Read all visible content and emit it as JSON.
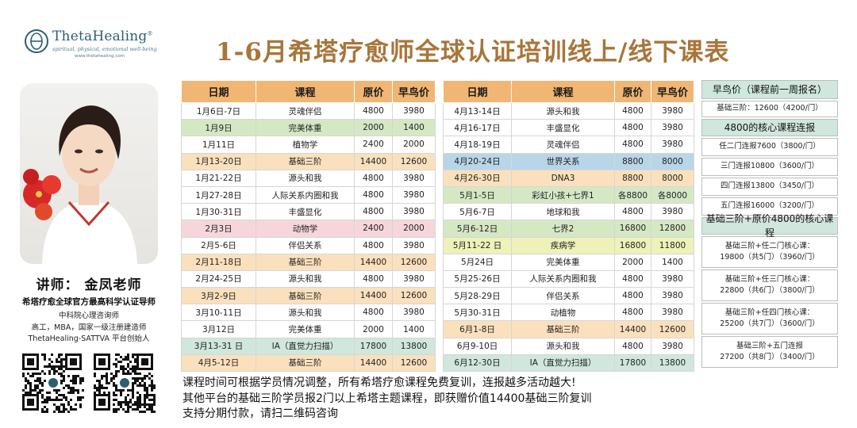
{
  "logo": {
    "name": "ThetaHealing",
    "registered": "®",
    "tagline": "spiritual, physical, emotional well-being",
    "url": "www.thetahealing.com"
  },
  "title": "1-6月希塔疗愈师全球认证培训线上/线下课表",
  "teacher": {
    "name": "讲师：  金凤老师",
    "role": "希塔疗愈全球官方最高科学认证导师",
    "lines": [
      "中科院心理咨询师",
      "高工，MBA，国家一级注册建造师",
      "ThetaHealing-SATTVA 平台创始人"
    ]
  },
  "table_headers": [
    "日期",
    "课程",
    "原价",
    "早鸟价"
  ],
  "table_left": [
    {
      "date": "1月6日-7日",
      "course": "灵魂伴侣",
      "price": "4800",
      "early": "3980",
      "color": ""
    },
    {
      "date": "1月9日",
      "course": "完美体重",
      "price": "2000",
      "early": "1400",
      "color": "green"
    },
    {
      "date": "1月11日",
      "course": "植物学",
      "price": "2400",
      "early": "2000",
      "color": ""
    },
    {
      "date": "1月13-20日",
      "course": "基础三阶",
      "price": "14400",
      "early": "12600",
      "color": "orange"
    },
    {
      "date": "1月21-22日",
      "course": "源头和我",
      "price": "4800",
      "early": "3980",
      "color": ""
    },
    {
      "date": "1月27-28日",
      "course": "人际关系内圈和我",
      "price": "4800",
      "early": "3980",
      "color": ""
    },
    {
      "date": "1月30-31日",
      "course": "丰盛显化",
      "price": "4800",
      "early": "3980",
      "color": ""
    },
    {
      "date": "2月3日",
      "course": "动物学",
      "price": "2400",
      "early": "2000",
      "color": "pink"
    },
    {
      "date": "2月5-6日",
      "course": "伴侣关系",
      "price": "4800",
      "early": "3980",
      "color": ""
    },
    {
      "date": "2月11-18日",
      "course": "基础三阶",
      "price": "14400",
      "early": "12600",
      "color": "orange"
    },
    {
      "date": "2月24-25日",
      "course": "源头和我",
      "price": "4800",
      "early": "3980",
      "color": ""
    },
    {
      "date": "3月2-9日",
      "course": "基础三阶",
      "price": "14400",
      "early": "12600",
      "color": "orange"
    },
    {
      "date": "3月10-11日",
      "course": "源头和我",
      "price": "4800",
      "early": "3980",
      "color": ""
    },
    {
      "date": "3月12日",
      "course": "完美体重",
      "price": "2000",
      "early": "1400",
      "color": ""
    },
    {
      "date": "3月13-31 日",
      "course": "IA（直觉力扫描）",
      "price": "17800",
      "early": "13800",
      "color": "aqua"
    },
    {
      "date": "4月5-12日",
      "course": "基础三阶",
      "price": "14400",
      "early": "12600",
      "color": "orange"
    }
  ],
  "table_right": [
    {
      "date": "4月13-14日",
      "course": "源头和我",
      "price": "4800",
      "early": "3980",
      "color": ""
    },
    {
      "date": "4月16-17日",
      "course": "丰盛显化",
      "price": "4800",
      "early": "3980",
      "color": ""
    },
    {
      "date": "4月18-19日",
      "course": "灵魂伴侣",
      "price": "4800",
      "early": "3980",
      "color": ""
    },
    {
      "date": "4月20-24日",
      "course": "世界关系",
      "price": "8800",
      "early": "8000",
      "color": "blue"
    },
    {
      "date": "4月26-30日",
      "course": "DNA3",
      "price": "8800",
      "early": "8000",
      "color": "orange"
    },
    {
      "date": "5月1-5日",
      "course": "彩虹小孩+七界1",
      "price": "各8800",
      "early": "各8000",
      "color": "green"
    },
    {
      "date": "5月6-7日",
      "course": "地球和我",
      "price": "4800",
      "early": "3980",
      "color": ""
    },
    {
      "date": "5月6-12日",
      "course": "七界2",
      "price": "16800",
      "early": "12800",
      "color": "green"
    },
    {
      "date": "5月11-22 日",
      "course": "疾病学",
      "price": "16800",
      "early": "11800",
      "color": "yellow"
    },
    {
      "date": "5月24日",
      "course": "完美体重",
      "price": "2000",
      "early": "1400",
      "color": ""
    },
    {
      "date": "5月25-26日",
      "course": "人际关系内圈和我",
      "price": "4800",
      "early": "3980",
      "color": ""
    },
    {
      "date": "5月28-29日",
      "course": "伴侣关系",
      "price": "4800",
      "early": "3980",
      "color": ""
    },
    {
      "date": "5月30-31日",
      "course": "动植物",
      "price": "4800",
      "early": "3980",
      "color": ""
    },
    {
      "date": "6月1-8日",
      "course": "基础三阶",
      "price": "14400",
      "early": "12600",
      "color": "orange"
    },
    {
      "date": "6月9-10日",
      "course": "源头和我",
      "price": "4800",
      "early": "3980",
      "color": ""
    },
    {
      "date": "6月12-30日",
      "course": "IA（直觉力扫描）",
      "price": "17800",
      "early": "13800",
      "color": "aqua"
    }
  ],
  "promo": [
    {
      "lines": [
        "早鸟价（课程前一周报名）"
      ],
      "header": true,
      "h": 24
    },
    {
      "lines": [
        "基础三阶：12600（4200/门）"
      ],
      "header": false,
      "h": 21
    },
    {
      "lines": [
        "4800的核心课程连报"
      ],
      "header": true,
      "h": 22
    },
    {
      "lines": [
        "任二门连报7600（3800/门）"
      ],
      "header": false,
      "h": 23
    },
    {
      "lines": [
        "三门连报10800（3600/门）"
      ],
      "header": false,
      "h": 23
    },
    {
      "lines": [
        "四门连报13800（3450/门）"
      ],
      "header": false,
      "h": 23
    },
    {
      "lines": [
        "五门连报16000（3200/门）"
      ],
      "header": false,
      "h": 23
    },
    {
      "lines": [
        "基础三阶+原价4800的核心课程"
      ],
      "header": true,
      "h": 22
    },
    {
      "lines": [
        "基础三阶+任二门核心课：",
        "19800（共5门）（3960/门）"
      ],
      "header": false,
      "h": 40
    },
    {
      "lines": [
        "基础三阶+任三门核心课：",
        "22800（共6门）（3800/门）"
      ],
      "header": false,
      "h": 40
    },
    {
      "lines": [
        "基础三阶+任四门核心课：",
        "25200（共7门）（3600/门）"
      ],
      "header": false,
      "h": 40
    },
    {
      "lines": [
        "基础三阶+五门连报",
        "27200（共8门）（3400/门）"
      ],
      "header": false,
      "h": 40
    }
  ],
  "notes": [
    "课程时间可根据学员情况调整，所有希塔疗愈课程免费复训，连报越多活动越大!",
    "其他平台的基础三阶学员报2门以上希塔主题课程，即获赠价值14400基础三阶复训",
    "支持分期付款，请扫二维码咨询"
  ],
  "colors": {
    "title": "#a8753a",
    "header": "#f1b673",
    "green": "#d5e8c4",
    "orange": "#fbe0bd",
    "pink": "#f6d6da",
    "blue": "#b8d6e8",
    "yellow": "#eef2b8",
    "aqua": "#cfe7dc"
  }
}
